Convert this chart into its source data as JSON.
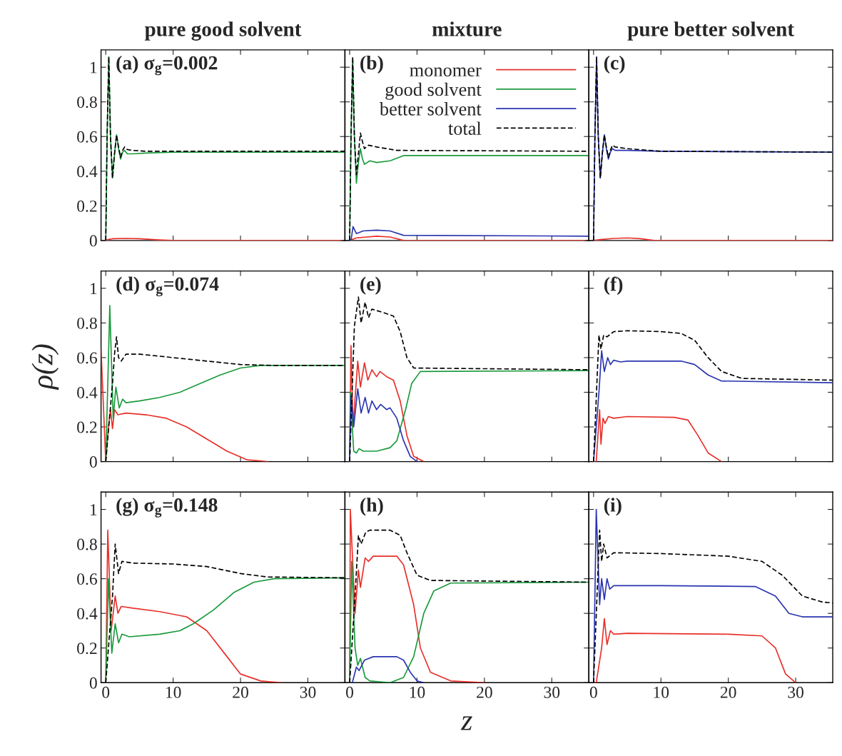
{
  "chart_data": [
    {
      "type": "line",
      "title": "pure good solvent",
      "annotations": [
        "(a) σ$_{g}$=0.002"
      ],
      "xlim": [
        -0.7,
        35.5
      ],
      "ylim": [
        0,
        1.1
      ],
      "xticks": [
        0,
        10,
        20,
        30
      ],
      "yticks": [
        0,
        0.2,
        0.4,
        0.6,
        0.8,
        1
      ],
      "tick_labels": "y",
      "series": [
        {
          "color": "#e8302a",
          "x": [
            0,
            0.3,
            1,
            3,
            5,
            8,
            10,
            35
          ],
          "values": [
            0,
            0.005,
            0.01,
            0.012,
            0.01,
            0.003,
            0,
            0
          ]
        },
        {
          "color": "#1a9a3c",
          "x": [
            0,
            0.2,
            0.45,
            0.7,
            1.0,
            1.3,
            1.6,
            1.9,
            2.2,
            2.5,
            2.8,
            3.2,
            4,
            6,
            10,
            20,
            35.5
          ],
          "values": [
            0,
            0.6,
            1.06,
            0.6,
            0.36,
            0.5,
            0.61,
            0.53,
            0.47,
            0.51,
            0.52,
            0.5,
            0.5,
            0.505,
            0.51,
            0.51,
            0.51
          ]
        },
        {
          "color": "#000000",
          "line_style": "dashed",
          "x": [
            0,
            0.2,
            0.45,
            0.7,
            1.0,
            1.3,
            1.6,
            1.9,
            2.2,
            2.5,
            2.8,
            3.2,
            4,
            6,
            10,
            20,
            35.5
          ],
          "values": [
            0,
            0.6,
            1.06,
            0.6,
            0.36,
            0.5,
            0.61,
            0.54,
            0.48,
            0.52,
            0.54,
            0.525,
            0.52,
            0.515,
            0.515,
            0.515,
            0.515
          ]
        }
      ]
    },
    {
      "type": "line",
      "title": "mixture",
      "annotations": [
        "(b)"
      ],
      "xlim": [
        -0.7,
        35.5
      ],
      "ylim": [
        0,
        1.1
      ],
      "xticks": [
        0,
        10,
        20,
        30
      ],
      "yticks": [
        0,
        0.2,
        0.4,
        0.6,
        0.8,
        1
      ],
      "tick_labels": false,
      "legend": "top right",
      "series": [
        {
          "name": "monomer",
          "color": "#e8302a",
          "x": [
            0,
            1,
            4,
            6,
            8,
            35
          ],
          "values": [
            0,
            0.015,
            0.025,
            0.02,
            0,
            0
          ]
        },
        {
          "name": "good solvent",
          "color": "#1a9a3c",
          "x": [
            0,
            0.2,
            0.45,
            0.7,
            1.0,
            1.3,
            1.6,
            1.9,
            2.2,
            3,
            4,
            6,
            8,
            35.5
          ],
          "values": [
            0,
            0.6,
            1.04,
            0.6,
            0.33,
            0.45,
            0.53,
            0.47,
            0.44,
            0.46,
            0.45,
            0.46,
            0.49,
            0.49
          ]
        },
        {
          "name": "better solvent",
          "color": "#2a35b0",
          "x": [
            0,
            0.2,
            0.5,
            1,
            2,
            4,
            6,
            8,
            35.5
          ],
          "values": [
            0,
            0,
            0.08,
            0.04,
            0.055,
            0.06,
            0.055,
            0.03,
            0.025
          ]
        },
        {
          "name": "total",
          "color": "#000000",
          "line_style": "dashed",
          "x": [
            0,
            0.2,
            0.45,
            0.7,
            1.0,
            1.3,
            1.6,
            1.9,
            2.2,
            2.8,
            4,
            7,
            35.5
          ],
          "values": [
            0,
            0.6,
            1.06,
            0.6,
            0.38,
            0.5,
            0.62,
            0.57,
            0.53,
            0.55,
            0.54,
            0.52,
            0.515
          ]
        }
      ]
    },
    {
      "type": "line",
      "title": "pure better solvent",
      "annotations": [
        "(c)"
      ],
      "xlim": [
        -0.7,
        35.5
      ],
      "ylim": [
        0,
        1.1
      ],
      "xticks": [
        0,
        10,
        20,
        30
      ],
      "yticks": [
        0,
        0.2,
        0.4,
        0.6,
        0.8,
        1
      ],
      "tick_labels": false,
      "series": [
        {
          "color": "#e8302a",
          "x": [
            0,
            1,
            3,
            5,
            7,
            9,
            35.5
          ],
          "values": [
            0,
            0.005,
            0.012,
            0.015,
            0.01,
            0,
            0
          ]
        },
        {
          "color": "#2a35b0",
          "x": [
            0,
            0.2,
            0.45,
            0.7,
            1.0,
            1.3,
            1.6,
            1.9,
            2.2,
            2.5,
            2.8,
            3.2,
            5,
            10,
            35.5
          ],
          "values": [
            0,
            0.6,
            1.06,
            0.6,
            0.36,
            0.5,
            0.61,
            0.53,
            0.47,
            0.51,
            0.53,
            0.52,
            0.52,
            0.515,
            0.51
          ]
        },
        {
          "color": "#000000",
          "line_style": "dashed",
          "x": [
            0,
            0.2,
            0.45,
            0.7,
            1.0,
            1.3,
            1.6,
            1.9,
            2.2,
            2.5,
            2.8,
            3.2,
            5,
            10,
            35.5
          ],
          "values": [
            0,
            0.6,
            1.06,
            0.6,
            0.36,
            0.5,
            0.61,
            0.54,
            0.48,
            0.52,
            0.55,
            0.54,
            0.53,
            0.515,
            0.51
          ]
        }
      ]
    },
    {
      "type": "line",
      "annotations": [
        "(d) σ$_{g}$=0.074"
      ],
      "ylabel": "ρ(z)",
      "xlim": [
        -0.7,
        35.5
      ],
      "ylim": [
        0,
        1.1
      ],
      "xticks": [
        0,
        10,
        20,
        30
      ],
      "yticks": [
        0,
        0.2,
        0.4,
        0.6,
        0.8,
        1
      ],
      "tick_labels": "y",
      "series": [
        {
          "color": "#e8302a",
          "x": [
            -0.7,
            0,
            0.4,
            0.7,
            1.0,
            1.3,
            1.8,
            3,
            6,
            9,
            12,
            15,
            18,
            21,
            24
          ],
          "values": [
            0.65,
            0,
            0.2,
            0.3,
            0.19,
            0.3,
            0.27,
            0.28,
            0.27,
            0.25,
            0.2,
            0.13,
            0.06,
            0.01,
            0
          ]
        },
        {
          "color": "#1a9a3c",
          "x": [
            0,
            0.6,
            1.1,
            1.5,
            2.0,
            2.5,
            3,
            5,
            8,
            11,
            14,
            17,
            20,
            23,
            35.5
          ],
          "values": [
            0,
            0.9,
            0.25,
            0.43,
            0.31,
            0.36,
            0.34,
            0.35,
            0.37,
            0.4,
            0.45,
            0.5,
            0.54,
            0.555,
            0.555
          ]
        },
        {
          "color": "#000000",
          "line_style": "dashed",
          "x": [
            0,
            0.3,
            0.7,
            1.0,
            1.3,
            1.6,
            1.9,
            2.3,
            3,
            5,
            10,
            15,
            20,
            25,
            35.5
          ],
          "values": [
            0,
            null,
            null,
            0.45,
            0.62,
            0.72,
            0.6,
            0.58,
            0.62,
            0.62,
            0.6,
            0.58,
            0.56,
            0.555,
            0.555
          ]
        }
      ]
    },
    {
      "type": "line",
      "annotations": [
        "(e)"
      ],
      "xlim": [
        -0.7,
        35.5
      ],
      "ylim": [
        0,
        1.1
      ],
      "xticks": [
        0,
        10,
        20,
        30
      ],
      "yticks": [
        0,
        0.2,
        0.4,
        0.6,
        0.8,
        1
      ],
      "tick_labels": false,
      "series": [
        {
          "color": "#e8302a",
          "x": [
            0,
            0.2,
            0.5,
            1.2,
            1.6,
            2.2,
            2.7,
            3.3,
            4,
            4.5,
            5.5,
            6.5,
            7.5,
            8.5,
            9.5,
            11
          ],
          "values": [
            0,
            0.67,
            0.2,
            0.58,
            0.43,
            0.57,
            0.47,
            0.53,
            0.49,
            0.52,
            0.49,
            0.47,
            0.35,
            0.15,
            0.03,
            0
          ]
        },
        {
          "color": "#1a9a3c",
          "x": [
            0,
            0.1,
            0.6,
            1,
            1.4,
            2,
            4,
            6,
            7,
            8.3,
            9.2,
            10.5,
            35.5
          ],
          "values": [
            0,
            0.4,
            0.06,
            0.05,
            0.075,
            0.06,
            0.06,
            0.08,
            0.12,
            0.3,
            0.45,
            0.52,
            0.525
          ]
        },
        {
          "color": "#2a35b0",
          "x": [
            0,
            0.2,
            0.6,
            1.2,
            1.7,
            2.3,
            2.8,
            3.3,
            4,
            4.6,
            5.5,
            6,
            7,
            8,
            9,
            10
          ],
          "values": [
            0,
            0.38,
            0.2,
            0.42,
            0.28,
            0.37,
            0.28,
            0.35,
            0.3,
            0.33,
            0.3,
            0.31,
            0.25,
            0.12,
            0.03,
            0
          ]
        },
        {
          "color": "#000000",
          "line_style": "dashed",
          "x": [
            0,
            0.3,
            0.7,
            1.3,
            1.7,
            2.3,
            2.8,
            3.3,
            5,
            6.5,
            7.5,
            8.5,
            9.5,
            35.5
          ],
          "values": [
            0,
            null,
            0.78,
            0.95,
            0.8,
            0.92,
            0.83,
            0.88,
            0.86,
            0.84,
            0.75,
            0.6,
            0.54,
            0.53
          ]
        }
      ]
    },
    {
      "type": "line",
      "annotations": [
        "(f)"
      ],
      "xlim": [
        -0.7,
        35.5
      ],
      "ylim": [
        0,
        1.1
      ],
      "xticks": [
        0,
        10,
        20,
        30
      ],
      "yticks": [
        0,
        0.2,
        0.4,
        0.6,
        0.8,
        1
      ],
      "tick_labels": false,
      "series": [
        {
          "color": "#e8302a",
          "x": [
            0,
            0.4,
            0.9,
            1.1,
            1.4,
            1.7,
            2.2,
            3,
            5,
            12,
            14,
            15.5,
            17,
            19
          ],
          "values": [
            0,
            0,
            0.3,
            0.1,
            0.25,
            0.22,
            0.26,
            0.25,
            0.26,
            0.255,
            0.24,
            0.15,
            0.05,
            0
          ]
        },
        {
          "color": "#2a35b0",
          "x": [
            0,
            0.3,
            0.8,
            1.2,
            1.6,
            2.1,
            2.5,
            3,
            4,
            5,
            13,
            15,
            17,
            19,
            35.5
          ],
          "values": [
            0,
            null,
            0.4,
            0.64,
            0.52,
            0.6,
            0.56,
            0.585,
            0.575,
            0.58,
            0.58,
            0.56,
            0.5,
            0.465,
            0.455
          ]
        },
        {
          "color": "#000000",
          "line_style": "dashed",
          "x": [
            0,
            0.3,
            0.8,
            1.1,
            1.5,
            2,
            3,
            5,
            10,
            13,
            15,
            17,
            19,
            22,
            35.5
          ],
          "values": [
            0,
            null,
            0.73,
            0.65,
            0.73,
            0.72,
            0.75,
            0.755,
            0.75,
            0.74,
            0.7,
            0.6,
            0.52,
            0.48,
            0.47
          ]
        }
      ]
    },
    {
      "type": "line",
      "annotations": [
        "(g) σ$_{g}$=0.148"
      ],
      "xlim": [
        -0.7,
        35.5
      ],
      "ylim": [
        0,
        1.1
      ],
      "xticks": [
        0,
        10,
        20,
        30
      ],
      "yticks": [
        0,
        0.2,
        0.4,
        0.6,
        0.8,
        1
      ],
      "series": [
        {
          "color": "#e8302a",
          "x": [
            0,
            0.3,
            0.8,
            1.4,
            1.8,
            2.3,
            4,
            8,
            12,
            15,
            18,
            20,
            23,
            26
          ],
          "values": [
            0,
            0.88,
            0.3,
            0.5,
            0.4,
            0.44,
            0.43,
            0.41,
            0.38,
            0.3,
            0.15,
            0.05,
            0.01,
            0
          ]
        },
        {
          "color": "#1a9a3c",
          "x": [
            0,
            0.4,
            0.9,
            1.4,
            1.9,
            2.4,
            3.5,
            8,
            11,
            13,
            16,
            19,
            22,
            25,
            35.5
          ],
          "values": [
            0,
            0.6,
            0.17,
            0.34,
            0.23,
            0.28,
            0.265,
            0.28,
            0.3,
            0.34,
            0.42,
            0.52,
            0.58,
            0.6,
            0.605
          ]
        },
        {
          "color": "#000000",
          "line_style": "dashed",
          "x": [
            0,
            0.3,
            0.6,
            1.0,
            1.4,
            1.9,
            2.4,
            4,
            10,
            15,
            20,
            24,
            35.5
          ],
          "values": [
            0,
            null,
            null,
            0.5,
            0.8,
            0.63,
            0.7,
            0.69,
            0.685,
            0.67,
            0.63,
            0.61,
            0.605
          ]
        }
      ]
    },
    {
      "type": "line",
      "annotations": [
        "(h)"
      ],
      "xlabel": "z",
      "xlim": [
        -0.7,
        35.5
      ],
      "ylim": [
        0,
        1.1
      ],
      "xticks": [
        0,
        10,
        20,
        30
      ],
      "yticks": [
        0,
        0.2,
        0.4,
        0.6,
        0.8,
        1
      ],
      "tick_labels": "x",
      "series": [
        {
          "color": "#e8302a",
          "x": [
            0,
            0.1,
            0.8,
            1.3,
            1.6,
            2.3,
            2.8,
            3.5,
            7,
            8,
            9.5,
            10.5,
            12,
            15,
            20
          ],
          "values": [
            0,
            1.0,
            0.4,
            0.65,
            0.55,
            0.72,
            0.7,
            0.73,
            0.73,
            0.68,
            0.45,
            0.2,
            0.06,
            0.01,
            0
          ]
        },
        {
          "color": "#1a9a3c",
          "x": [
            0,
            0.3,
            0.8,
            1.2,
            1.6,
            2.3,
            3,
            6,
            8,
            9.5,
            11,
            12.5,
            15,
            35.5
          ],
          "values": [
            0,
            0.7,
            0.2,
            0.1,
            0.14,
            0.03,
            0.01,
            0,
            0.03,
            0.15,
            0.4,
            0.53,
            0.575,
            0.58
          ]
        },
        {
          "color": "#2a35b0",
          "x": [
            0,
            0.4,
            1.0,
            1.4,
            2.2,
            3.5,
            7,
            8,
            9,
            10,
            11
          ],
          "values": [
            0,
            0,
            0.09,
            0.07,
            0.13,
            0.15,
            0.15,
            0.13,
            0.06,
            0.01,
            0
          ]
        },
        {
          "color": "#000000",
          "line_style": "dashed",
          "x": [
            0,
            0.3,
            0.8,
            1.3,
            1.7,
            2.4,
            3,
            6,
            7.5,
            8.5,
            10,
            12,
            35.5
          ],
          "values": [
            0,
            null,
            0.5,
            0.85,
            0.8,
            0.87,
            0.88,
            0.88,
            0.85,
            0.75,
            0.62,
            0.59,
            0.58
          ]
        }
      ]
    },
    {
      "type": "line",
      "annotations": [
        "(i)"
      ],
      "xlim": [
        -0.7,
        35.5
      ],
      "ylim": [
        0,
        1.1
      ],
      "xticks": [
        0,
        10,
        20,
        30
      ],
      "yticks": [
        0,
        0.2,
        0.4,
        0.6,
        0.8,
        1
      ],
      "tick_labels": "x",
      "series": [
        {
          "color": "#e8302a",
          "x": [
            0,
            0.4,
            1.2,
            1.6,
            2.0,
            2.5,
            3,
            5,
            20,
            25,
            27,
            28.5,
            30
          ],
          "values": [
            0,
            0,
            0.2,
            0.37,
            0.22,
            0.3,
            0.28,
            0.285,
            0.28,
            0.27,
            0.2,
            0.05,
            0
          ]
        },
        {
          "color": "#2a35b0",
          "x": [
            0,
            0.4,
            0.9,
            1.2,
            1.6,
            2,
            2.4,
            3,
            10,
            24,
            27,
            29,
            31,
            35.5
          ],
          "values": [
            0,
            1.0,
            0.45,
            0.6,
            0.48,
            0.6,
            0.54,
            0.56,
            0.56,
            0.555,
            0.5,
            0.4,
            0.38,
            0.38
          ]
        },
        {
          "color": "#000000",
          "line_style": "dashed",
          "x": [
            0,
            0.4,
            0.9,
            1.2,
            1.5,
            2,
            3,
            10,
            20,
            25,
            28,
            31,
            34,
            35.5
          ],
          "values": [
            0,
            null,
            0.88,
            0.7,
            0.8,
            0.72,
            0.75,
            0.745,
            0.73,
            0.7,
            0.62,
            0.5,
            0.465,
            0.46
          ]
        }
      ]
    }
  ]
}
